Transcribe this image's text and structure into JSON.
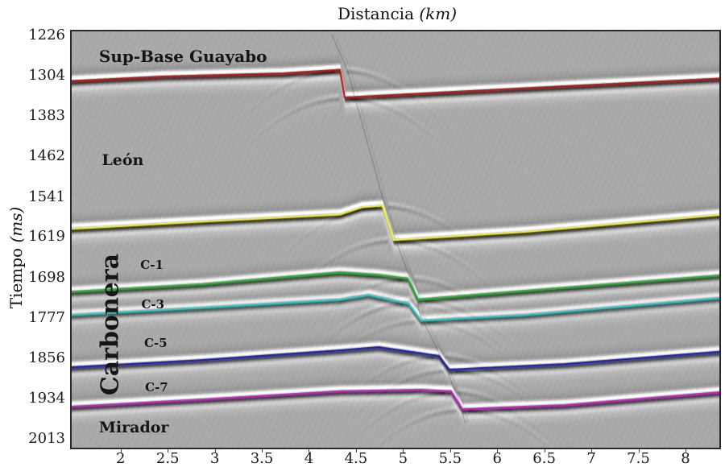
{
  "figure": {
    "background": "#ffffff",
    "plot_background": "#aaaaaa",
    "frame_color": "#2a2a2a",
    "text_color": "#151515"
  },
  "chart_data": {
    "type": "heatmap",
    "subtype": "seismic-reflection-section-with-horizon-picks",
    "xlabel": {
      "text": "Distancia",
      "unit": "(km)"
    },
    "ylabel": {
      "text": "Tiempo",
      "unit": "(ms)"
    },
    "x_ticks": [
      2,
      2.5,
      3,
      3.5,
      4,
      4.5,
      5,
      5.5,
      6,
      6.5,
      7,
      7.5,
      8
    ],
    "y_ticks": [
      1226,
      1304,
      1383,
      1462,
      1541,
      1619,
      1698,
      1777,
      1856,
      1934,
      2013
    ],
    "xlim": [
      1.48,
      8.36
    ],
    "ylim": [
      1218,
      2030
    ],
    "y_axis_reversed": true,
    "grid": false,
    "series": [
      {
        "name": "horizon-red",
        "color": "#b81414",
        "amp": 100,
        "points": [
          [
            1.48,
            1315
          ],
          [
            2.45,
            1306
          ],
          [
            3.73,
            1300
          ],
          [
            4.33,
            1293
          ],
          [
            4.38,
            1347
          ],
          [
            5.87,
            1333
          ],
          [
            8.36,
            1310
          ]
        ]
      },
      {
        "name": "horizon-yellow",
        "color": "#eded3c",
        "amp": 100,
        "points": [
          [
            1.48,
            1603
          ],
          [
            2.87,
            1589
          ],
          [
            4.33,
            1575
          ],
          [
            4.56,
            1561
          ],
          [
            4.78,
            1558
          ],
          [
            4.9,
            1625
          ],
          [
            6.3,
            1609
          ],
          [
            8.36,
            1576
          ]
        ]
      },
      {
        "name": "horizon-green",
        "color": "#22b332",
        "amp": 85,
        "points": [
          [
            1.48,
            1726
          ],
          [
            2.87,
            1711
          ],
          [
            4.33,
            1688
          ],
          [
            4.74,
            1693
          ],
          [
            5.05,
            1700
          ],
          [
            5.16,
            1741
          ],
          [
            6.3,
            1724
          ],
          [
            8.36,
            1694
          ]
        ]
      },
      {
        "name": "horizon-cyan",
        "color": "#28ccc8",
        "amp": 72,
        "points": [
          [
            1.48,
            1771
          ],
          [
            2.87,
            1757
          ],
          [
            4.33,
            1741
          ],
          [
            4.63,
            1732
          ],
          [
            5.06,
            1749
          ],
          [
            5.19,
            1782
          ],
          [
            6.3,
            1771
          ],
          [
            8.36,
            1738
          ]
        ]
      },
      {
        "name": "horizon-blue",
        "color": "#1c1cb8",
        "amp": 88,
        "points": [
          [
            1.48,
            1873
          ],
          [
            2.87,
            1859
          ],
          [
            4.33,
            1840
          ],
          [
            4.74,
            1834
          ],
          [
            5.38,
            1851
          ],
          [
            5.49,
            1878
          ],
          [
            6.72,
            1867
          ],
          [
            8.36,
            1843
          ]
        ]
      },
      {
        "name": "horizon-magenta",
        "color": "#c520c5",
        "amp": 92,
        "points": [
          [
            1.48,
            1950
          ],
          [
            2.87,
            1936
          ],
          [
            4.33,
            1920
          ],
          [
            5.18,
            1917
          ],
          [
            5.51,
            1920
          ],
          [
            5.63,
            1955
          ],
          [
            6.72,
            1947
          ],
          [
            8.36,
            1922
          ]
        ]
      }
    ],
    "fault": {
      "name": "normal-fault-trace",
      "color": "rgba(45,45,45,0.28)",
      "points": [
        [
          4.24,
          1223
        ],
        [
          4.41,
          1294
        ],
        [
          4.86,
          1594
        ],
        [
          5.12,
          1722
        ],
        [
          5.18,
          1770
        ],
        [
          5.44,
          1867
        ],
        [
          5.6,
          1942
        ],
        [
          5.66,
          1982
        ]
      ]
    },
    "annotations": [
      {
        "text": "Sup-Base Guayabo",
        "x_km": 1.77,
        "y_ms": 1248,
        "size": 20,
        "rotation": 0
      },
      {
        "text": "León",
        "x_km": 1.8,
        "y_ms": 1452,
        "size": 19,
        "rotation": 0
      },
      {
        "text": "Carbonera",
        "x_km": 1.89,
        "y_ms": 1790,
        "size": 30,
        "rotation": -90
      },
      {
        "text": "C-1",
        "x_km": 2.21,
        "y_ms": 1660,
        "size": 15,
        "rotation": 0
      },
      {
        "text": "C-3",
        "x_km": 2.22,
        "y_ms": 1737,
        "size": 15,
        "rotation": 0
      },
      {
        "text": "C-5",
        "x_km": 2.25,
        "y_ms": 1812,
        "size": 15,
        "rotation": 0
      },
      {
        "text": "C-7",
        "x_km": 2.26,
        "y_ms": 1898,
        "size": 15,
        "rotation": 0
      },
      {
        "text": "Mirador",
        "x_km": 1.77,
        "y_ms": 1973,
        "size": 19,
        "rotation": 0
      }
    ]
  }
}
